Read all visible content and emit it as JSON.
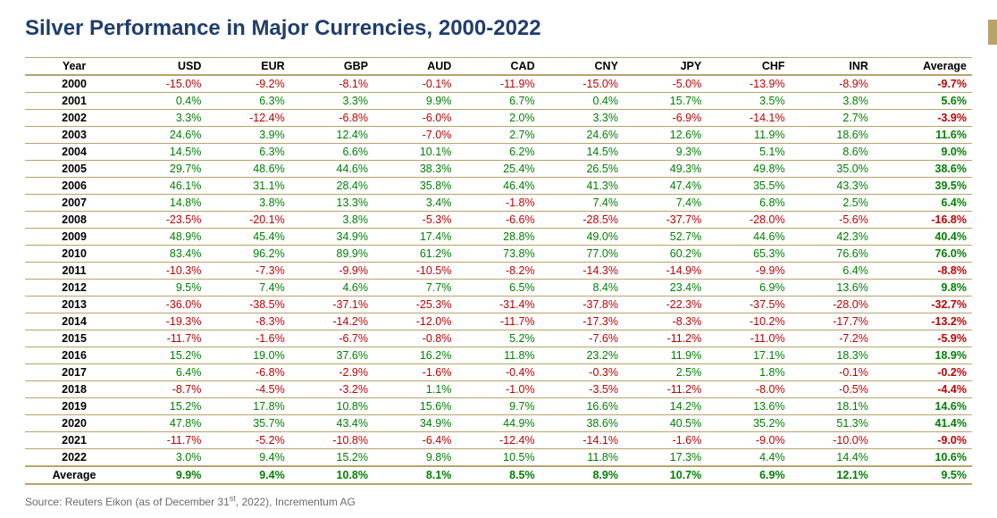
{
  "title": "Silver Performance in Major Currencies, 2000-2022",
  "source_prefix": "Source: Reuters Eikon (as of December 31",
  "source_sup": "st",
  "source_suffix": ", 2022), Incrementum AG",
  "colors": {
    "title": "#1f3e6f",
    "accent": "#b9a36a",
    "positive": "#008000",
    "negative": "#c00000",
    "source_text": "#6a6a6a",
    "background": "#ffffff"
  },
  "table": {
    "type": "table",
    "columns": [
      "Year",
      "USD",
      "EUR",
      "GBP",
      "AUD",
      "CAD",
      "CNY",
      "JPY",
      "CHF",
      "INR",
      "Average"
    ],
    "rows": [
      {
        "year": "2000",
        "values": [
          "-15.0%",
          "-9.2%",
          "-8.1%",
          "-0.1%",
          "-11.9%",
          "-15.0%",
          "-5.0%",
          "-13.9%",
          "-8.9%",
          "-9.7%"
        ]
      },
      {
        "year": "2001",
        "values": [
          "0.4%",
          "6.3%",
          "3.3%",
          "9.9%",
          "6.7%",
          "0.4%",
          "15.7%",
          "3.5%",
          "3.8%",
          "5.6%"
        ]
      },
      {
        "year": "2002",
        "values": [
          "3.3%",
          "-12.4%",
          "-6.8%",
          "-6.0%",
          "2.0%",
          "3.3%",
          "-6.9%",
          "-14.1%",
          "2.7%",
          "-3.9%"
        ]
      },
      {
        "year": "2003",
        "values": [
          "24.6%",
          "3.9%",
          "12.4%",
          "-7.0%",
          "2.7%",
          "24.6%",
          "12.6%",
          "11.9%",
          "18.6%",
          "11.6%"
        ]
      },
      {
        "year": "2004",
        "values": [
          "14.5%",
          "6.3%",
          "6.6%",
          "10.1%",
          "6.2%",
          "14.5%",
          "9.3%",
          "5.1%",
          "8.6%",
          "9.0%"
        ]
      },
      {
        "year": "2005",
        "values": [
          "29.7%",
          "48.6%",
          "44.6%",
          "38.3%",
          "25.4%",
          "26.5%",
          "49.3%",
          "49.8%",
          "35.0%",
          "38.6%"
        ]
      },
      {
        "year": "2006",
        "values": [
          "46.1%",
          "31.1%",
          "28.4%",
          "35.8%",
          "46.4%",
          "41.3%",
          "47.4%",
          "35.5%",
          "43.3%",
          "39.5%"
        ]
      },
      {
        "year": "2007",
        "values": [
          "14.8%",
          "3.8%",
          "13.3%",
          "3.4%",
          "-1.8%",
          "7.4%",
          "7.4%",
          "6.8%",
          "2.5%",
          "6.4%"
        ]
      },
      {
        "year": "2008",
        "values": [
          "-23.5%",
          "-20.1%",
          "3.8%",
          "-5.3%",
          "-6.6%",
          "-28.5%",
          "-37.7%",
          "-28.0%",
          "-5.6%",
          "-16.8%"
        ]
      },
      {
        "year": "2009",
        "values": [
          "48.9%",
          "45.4%",
          "34.9%",
          "17.4%",
          "28.8%",
          "49.0%",
          "52.7%",
          "44.6%",
          "42.3%",
          "40.4%"
        ]
      },
      {
        "year": "2010",
        "values": [
          "83.4%",
          "96.2%",
          "89.9%",
          "61.2%",
          "73.8%",
          "77.0%",
          "60.2%",
          "65.3%",
          "76.6%",
          "76.0%"
        ]
      },
      {
        "year": "2011",
        "values": [
          "-10.3%",
          "-7.3%",
          "-9.9%",
          "-10.5%",
          "-8.2%",
          "-14.3%",
          "-14.9%",
          "-9.9%",
          "6.4%",
          "-8.8%"
        ]
      },
      {
        "year": "2012",
        "values": [
          "9.5%",
          "7.4%",
          "4.6%",
          "7.7%",
          "6.5%",
          "8.4%",
          "23.4%",
          "6.9%",
          "13.6%",
          "9.8%"
        ]
      },
      {
        "year": "2013",
        "values": [
          "-36.0%",
          "-38.5%",
          "-37.1%",
          "-25.3%",
          "-31.4%",
          "-37.8%",
          "-22.3%",
          "-37.5%",
          "-28.0%",
          "-32.7%"
        ]
      },
      {
        "year": "2014",
        "values": [
          "-19.3%",
          "-8.3%",
          "-14.2%",
          "-12.0%",
          "-11.7%",
          "-17.3%",
          "-8.3%",
          "-10.2%",
          "-17.7%",
          "-13.2%"
        ]
      },
      {
        "year": "2015",
        "values": [
          "-11.7%",
          "-1.6%",
          "-6.7%",
          "-0.8%",
          "5.2%",
          "-7.6%",
          "-11.2%",
          "-11.0%",
          "-7.2%",
          "-5.9%"
        ]
      },
      {
        "year": "2016",
        "values": [
          "15.2%",
          "19.0%",
          "37.6%",
          "16.2%",
          "11.8%",
          "23.2%",
          "11.9%",
          "17.1%",
          "18.3%",
          "18.9%"
        ]
      },
      {
        "year": "2017",
        "values": [
          "6.4%",
          "-6.8%",
          "-2.9%",
          "-1.6%",
          "-0.4%",
          "-0.3%",
          "2.5%",
          "1.8%",
          "-0.1%",
          "-0.2%"
        ]
      },
      {
        "year": "2018",
        "values": [
          "-8.7%",
          "-4.5%",
          "-3.2%",
          "1.1%",
          "-1.0%",
          "-3.5%",
          "-11.2%",
          "-8.0%",
          "-0.5%",
          "-4.4%"
        ]
      },
      {
        "year": "2019",
        "values": [
          "15.2%",
          "17.8%",
          "10.8%",
          "15.6%",
          "9.7%",
          "16.6%",
          "14.2%",
          "13.6%",
          "18.1%",
          "14.6%"
        ]
      },
      {
        "year": "2020",
        "values": [
          "47.8%",
          "35.7%",
          "43.4%",
          "34.9%",
          "44.9%",
          "38.6%",
          "40.5%",
          "35.2%",
          "51.3%",
          "41.4%"
        ]
      },
      {
        "year": "2021",
        "values": [
          "-11.7%",
          "-5.2%",
          "-10.8%",
          "-6.4%",
          "-12.4%",
          "-14.1%",
          "-1.6%",
          "-9.0%",
          "-10.0%",
          "-9.0%"
        ]
      },
      {
        "year": "2022",
        "values": [
          "3.0%",
          "9.4%",
          "15.2%",
          "9.8%",
          "10.5%",
          "11.8%",
          "17.3%",
          "4.4%",
          "14.4%",
          "10.6%"
        ]
      }
    ],
    "average_row": {
      "year": "Average",
      "values": [
        "9.9%",
        "9.4%",
        "10.8%",
        "8.1%",
        "8.5%",
        "8.9%",
        "10.7%",
        "6.9%",
        "12.1%",
        "9.5%"
      ]
    }
  }
}
